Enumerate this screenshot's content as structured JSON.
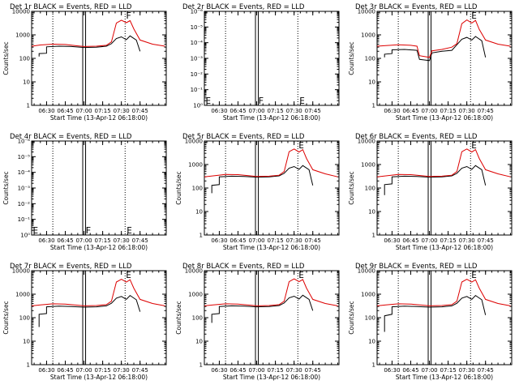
{
  "figure": {
    "colors": {
      "events": "#000000",
      "lld": "#dd0000",
      "background": "#ffffff"
    }
  },
  "chart_data": [
    {
      "type": "line",
      "title": "Det 1r BLACK = Events, RED = LLD",
      "xlabel": "Start Time (13-Apr-12 06:18:00)",
      "ylabel": "Counts/sec",
      "log_y": true,
      "ylim": [
        1,
        10000
      ],
      "y_ticks": [
        "1",
        "10",
        "100",
        "1000",
        "10000"
      ],
      "x_ticks": [
        "06:30",
        "06:45",
        "07:00",
        "07:15",
        "07:30",
        "07:45"
      ],
      "markers": [
        "F"
      ],
      "series": [
        {
          "name": "Events",
          "x": [
            "06:18",
            "06:22",
            "06:24",
            "06:24",
            "06:30",
            "06:30",
            "06:40",
            "06:50",
            "07:00",
            "07:10",
            "07:18",
            "07:22",
            "07:26",
            "07:30",
            "07:34",
            "07:37",
            "07:42",
            "07:45"
          ],
          "values": [
            null,
            null,
            120,
            160,
            165,
            310,
            330,
            320,
            290,
            300,
            330,
            420,
            700,
            820,
            620,
            900,
            600,
            200
          ]
        },
        {
          "name": "LLD",
          "x": [
            "06:18",
            "06:25",
            "06:35",
            "06:45",
            "06:55",
            "07:00",
            "07:10",
            "07:18",
            "07:22",
            "07:26",
            "07:30",
            "07:34",
            "07:37",
            "07:40",
            "07:45",
            "07:55",
            "08:05"
          ],
          "values": [
            330,
            370,
            400,
            390,
            340,
            320,
            330,
            360,
            500,
            3200,
            4200,
            3300,
            4000,
            1800,
            600,
            400,
            330
          ]
        }
      ]
    },
    {
      "type": "line",
      "title": "Det 2r BLACK = Events, RED = LLD",
      "xlabel": "Start Time (13-Apr-12 06:18:00)",
      "ylabel": "",
      "log_y": true,
      "ylim": [
        1e-06,
        1.0
      ],
      "y_ticks": [
        "10⁰",
        "10⁻¹",
        "10⁻²",
        "10⁻³",
        "10⁻⁴",
        "10⁻⁵",
        "10⁻⁶"
      ],
      "x_ticks": [
        "06:30",
        "06:45",
        "07:00",
        "07:15",
        "07:30",
        "07:45"
      ],
      "markers": [
        "E",
        "F",
        "E"
      ],
      "series": []
    },
    {
      "type": "line",
      "title": "Det 3r BLACK = Events, RED = LLD",
      "xlabel": "Start Time (13-Apr-12 06:18:00)",
      "ylabel": "Counts/sec",
      "log_y": true,
      "ylim": [
        1,
        10000
      ],
      "y_ticks": [
        "1",
        "10",
        "100",
        "1000",
        "10000"
      ],
      "x_ticks": [
        "06:30",
        "06:45",
        "07:00",
        "07:15",
        "07:30",
        "07:45"
      ],
      "markers": [
        "E"
      ],
      "series": [
        {
          "name": "Events",
          "x": [
            "06:24",
            "06:24",
            "06:30",
            "06:30",
            "06:40",
            "06:50",
            "06:52",
            "06:56",
            "07:00",
            "07:02",
            "07:10",
            "07:18",
            "07:22",
            "07:26",
            "07:30",
            "07:34",
            "07:37",
            "07:42",
            "07:45"
          ],
          "values": [
            110,
            150,
            160,
            230,
            240,
            220,
            90,
            85,
            80,
            170,
            200,
            220,
            380,
            650,
            780,
            600,
            850,
            560,
            110
          ]
        },
        {
          "name": "LLD",
          "x": [
            "06:18",
            "06:25",
            "06:35",
            "06:45",
            "06:50",
            "06:52",
            "06:56",
            "07:00",
            "07:02",
            "07:10",
            "07:18",
            "07:22",
            "07:26",
            "07:30",
            "07:34",
            "07:37",
            "07:40",
            "07:45",
            "07:55",
            "08:05"
          ],
          "values": [
            330,
            350,
            380,
            360,
            330,
            130,
            120,
            110,
            210,
            240,
            300,
            420,
            3000,
            4300,
            3200,
            4100,
            1700,
            600,
            400,
            330
          ]
        }
      ]
    },
    {
      "type": "line",
      "title": "Det 4r BLACK = Events, RED = LLD",
      "xlabel": "Start Time (13-Apr-12 06:18:00)",
      "ylabel": "Counts/sec",
      "log_y": true,
      "ylim": [
        1e-06,
        1.0
      ],
      "y_ticks": [
        "10⁰",
        "10⁻¹",
        "10⁻²",
        "10⁻³",
        "10⁻⁴",
        "10⁻⁵",
        "10⁻⁶"
      ],
      "x_ticks": [
        "06:30",
        "06:45",
        "07:00",
        "07:15",
        "07:30",
        "07:45"
      ],
      "markers": [
        "E",
        "F",
        "E"
      ],
      "series": []
    },
    {
      "type": "line",
      "title": "Det 5r BLACK = Events, RED = LLD",
      "xlabel": "Start Time (13-Apr-12 06:18:00)",
      "ylabel": "Counts/sec",
      "log_y": true,
      "ylim": [
        1,
        10000
      ],
      "y_ticks": [
        "1",
        "10",
        "100",
        "1000",
        "10000"
      ],
      "x_ticks": [
        "06:30",
        "06:45",
        "07:00",
        "07:15",
        "07:30",
        "07:45"
      ],
      "markers": [
        "E"
      ],
      "series": [
        {
          "name": "Events",
          "x": [
            "06:24",
            "06:24",
            "06:30",
            "06:30",
            "06:40",
            "06:50",
            "07:00",
            "07:10",
            "07:18",
            "07:22",
            "07:26",
            "07:30",
            "07:34",
            "07:37",
            "07:42",
            "07:45"
          ],
          "values": [
            60,
            130,
            140,
            300,
            320,
            310,
            290,
            300,
            330,
            420,
            700,
            820,
            620,
            900,
            600,
            130
          ]
        },
        {
          "name": "LLD",
          "x": [
            "06:18",
            "06:25",
            "06:35",
            "06:45",
            "06:55",
            "07:00",
            "07:10",
            "07:18",
            "07:22",
            "07:26",
            "07:30",
            "07:34",
            "07:37",
            "07:40",
            "07:45",
            "07:55",
            "08:05"
          ],
          "values": [
            300,
            330,
            380,
            370,
            330,
            310,
            320,
            350,
            500,
            3500,
            4600,
            3400,
            4300,
            1800,
            600,
            400,
            300
          ]
        }
      ]
    },
    {
      "type": "line",
      "title": "Det 6r BLACK = Events, RED = LLD",
      "xlabel": "Start Time (13-Apr-12 06:18:00)",
      "ylabel": "Counts/sec",
      "log_y": true,
      "ylim": [
        1,
        10000
      ],
      "y_ticks": [
        "1",
        "10",
        "100",
        "1000",
        "10000"
      ],
      "x_ticks": [
        "06:30",
        "06:45",
        "07:00",
        "07:15",
        "07:30",
        "07:45"
      ],
      "markers": [
        "E"
      ],
      "series": [
        {
          "name": "Events",
          "x": [
            "06:24",
            "06:24",
            "06:30",
            "06:30",
            "06:40",
            "06:50",
            "07:00",
            "07:10",
            "07:18",
            "07:22",
            "07:26",
            "07:30",
            "07:34",
            "07:37",
            "07:42",
            "07:45"
          ],
          "values": [
            50,
            140,
            150,
            300,
            320,
            310,
            290,
            300,
            330,
            420,
            700,
            820,
            620,
            900,
            600,
            130
          ]
        },
        {
          "name": "LLD",
          "x": [
            "06:18",
            "06:25",
            "06:35",
            "06:45",
            "06:55",
            "07:00",
            "07:10",
            "07:18",
            "07:22",
            "07:26",
            "07:30",
            "07:34",
            "07:37",
            "07:40",
            "07:45",
            "07:55",
            "08:05"
          ],
          "values": [
            300,
            330,
            380,
            370,
            330,
            310,
            320,
            350,
            500,
            3500,
            4600,
            3400,
            4300,
            1800,
            600,
            400,
            300
          ]
        }
      ]
    },
    {
      "type": "line",
      "title": "Det 7r BLACK = Events, RED = LLD",
      "xlabel": "Start Time (13-Apr-12 06:18:00)",
      "ylabel": "Counts/sec",
      "log_y": true,
      "ylim": [
        1,
        10000
      ],
      "y_ticks": [
        "1",
        "10",
        "100",
        "1000",
        "10000"
      ],
      "x_ticks": [
        "06:30",
        "06:45",
        "07:00",
        "07:15",
        "07:30",
        "07:45"
      ],
      "markers": [
        "E"
      ],
      "series": [
        {
          "name": "Events",
          "x": [
            "06:24",
            "06:24",
            "06:30",
            "06:30",
            "06:40",
            "06:50",
            "07:00",
            "07:10",
            "07:18",
            "07:22",
            "07:26",
            "07:30",
            "07:34",
            "07:37",
            "07:42",
            "07:45"
          ],
          "values": [
            40,
            140,
            150,
            290,
            310,
            300,
            280,
            290,
            320,
            410,
            680,
            800,
            600,
            880,
            580,
            180
          ]
        },
        {
          "name": "LLD",
          "x": [
            "06:18",
            "06:25",
            "06:35",
            "06:45",
            "06:55",
            "07:00",
            "07:10",
            "07:18",
            "07:22",
            "07:26",
            "07:30",
            "07:34",
            "07:37",
            "07:40",
            "07:45",
            "07:55",
            "08:05"
          ],
          "values": [
            320,
            350,
            390,
            380,
            340,
            320,
            330,
            360,
            500,
            3300,
            4300,
            3300,
            4100,
            1800,
            600,
            400,
            320
          ]
        }
      ]
    },
    {
      "type": "line",
      "title": "Det 8r BLACK = Events, RED = LLD",
      "xlabel": "Start Time (13-Apr-12 06:18:00)",
      "ylabel": "Counts/sec",
      "log_y": true,
      "ylim": [
        1,
        10000
      ],
      "y_ticks": [
        "1",
        "10",
        "100",
        "1000",
        "10000"
      ],
      "x_ticks": [
        "06:30",
        "06:45",
        "07:00",
        "07:15",
        "07:30",
        "07:45"
      ],
      "markers": [
        "E"
      ],
      "series": [
        {
          "name": "Events",
          "x": [
            "06:24",
            "06:24",
            "06:30",
            "06:30",
            "06:40",
            "06:50",
            "07:00",
            "07:10",
            "07:18",
            "07:22",
            "07:26",
            "07:30",
            "07:34",
            "07:37",
            "07:42",
            "07:45"
          ],
          "values": [
            60,
            140,
            150,
            300,
            320,
            310,
            290,
            300,
            330,
            420,
            700,
            820,
            620,
            900,
            600,
            200
          ]
        },
        {
          "name": "LLD",
          "x": [
            "06:18",
            "06:25",
            "06:35",
            "06:45",
            "06:55",
            "07:00",
            "07:10",
            "07:18",
            "07:22",
            "07:26",
            "07:30",
            "07:34",
            "07:37",
            "07:40",
            "07:45",
            "07:55",
            "08:05"
          ],
          "values": [
            320,
            350,
            390,
            380,
            340,
            320,
            330,
            360,
            500,
            3400,
            4500,
            3400,
            4200,
            1800,
            600,
            400,
            320
          ]
        }
      ]
    },
    {
      "type": "line",
      "title": "Det 9r BLACK = Events, RED = LLD",
      "xlabel": "Start Time (13-Apr-12 06:18:00)",
      "ylabel": "Counts/sec",
      "log_y": true,
      "ylim": [
        1,
        10000
      ],
      "y_ticks": [
        "1",
        "10",
        "100",
        "1000",
        "10000"
      ],
      "x_ticks": [
        "06:30",
        "06:45",
        "07:00",
        "07:15",
        "07:30",
        "07:45"
      ],
      "markers": [
        "E"
      ],
      "series": [
        {
          "name": "Events",
          "x": [
            "06:24",
            "06:24",
            "06:30",
            "06:30",
            "06:40",
            "06:50",
            "07:00",
            "07:10",
            "07:18",
            "07:22",
            "07:26",
            "07:30",
            "07:34",
            "07:37",
            "07:42",
            "07:45"
          ],
          "values": [
            25,
            120,
            140,
            290,
            310,
            300,
            280,
            290,
            320,
            410,
            680,
            800,
            600,
            880,
            580,
            130
          ]
        },
        {
          "name": "LLD",
          "x": [
            "06:18",
            "06:25",
            "06:35",
            "06:45",
            "06:55",
            "07:00",
            "07:10",
            "07:18",
            "07:22",
            "07:26",
            "07:30",
            "07:34",
            "07:37",
            "07:40",
            "07:45",
            "07:55",
            "08:05"
          ],
          "values": [
            320,
            350,
            390,
            380,
            340,
            320,
            330,
            360,
            500,
            3300,
            4300,
            3300,
            4100,
            1800,
            600,
            400,
            320
          ]
        }
      ]
    }
  ]
}
